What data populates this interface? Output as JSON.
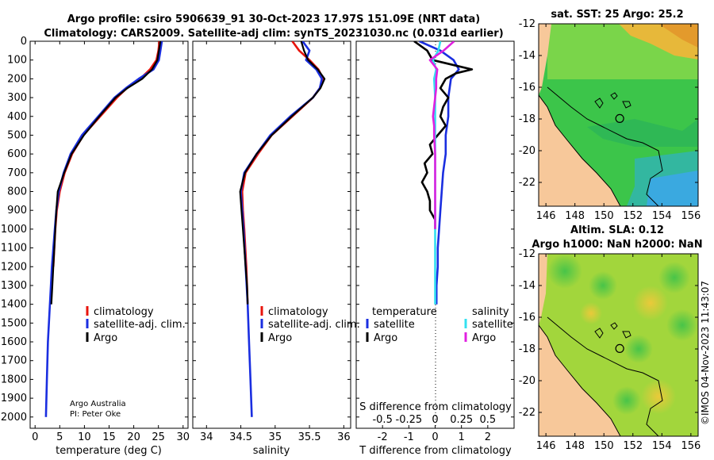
{
  "header": {
    "title_line1": "Argo profile: csiro 5906639_91 30-Oct-2023 17.97S 151.09E (NRT data)",
    "title_line2": "Climatology: CARS2009. Satellite-adj clim: synTS_20231030.nc (0.031d earlier)"
  },
  "credits": {
    "line1": "Argo Australia",
    "line2": "PI: Peter Oke"
  },
  "stamp": "©IMOS 04-Nov-2023 11:43:07",
  "colors": {
    "climatology": "#e8140c",
    "satellite": "#1a2ee0",
    "argo": "#000000",
    "sal_satellite": "#33e0f0",
    "sal_argo": "#e020e0"
  },
  "chart_data": [
    {
      "id": "temperature",
      "type": "line",
      "xlabel": "temperature (deg C)",
      "ylabel": "",
      "xlim": [
        -1,
        31
      ],
      "ylim": [
        2060,
        0
      ],
      "xticks": [
        0,
        5,
        10,
        15,
        20,
        25,
        30
      ],
      "xtick_labels": [
        "0",
        "5",
        "10",
        "15",
        "20",
        "25",
        "30"
      ],
      "yticks": [
        0,
        100,
        200,
        300,
        400,
        500,
        600,
        700,
        800,
        900,
        1000,
        1100,
        1200,
        1300,
        1400,
        1500,
        1600,
        1700,
        1800,
        1900,
        2000
      ],
      "ytick_labels": [
        "0",
        "100",
        "200",
        "300",
        "400",
        "500",
        "600",
        "700",
        "800",
        "900",
        "1000",
        "1100",
        "1200",
        "1300",
        "1400",
        "1500",
        "1600",
        "1700",
        "1800",
        "1900",
        "2000"
      ],
      "legend": [
        "climatology",
        "satellite-adj. clim.",
        "Argo"
      ],
      "series": [
        {
          "name": "climatology",
          "depth": [
            0,
            50,
            100,
            150,
            200,
            250,
            300,
            400,
            500,
            600,
            700,
            800,
            900,
            1000,
            1200
          ],
          "values": [
            25.2,
            25,
            24.6,
            23.3,
            21.3,
            18.6,
            16.6,
            13.2,
            9.8,
            7.5,
            6.0,
            5.0,
            4.4,
            4.1,
            3.7
          ]
        },
        {
          "name": "satellite-adj. clim.",
          "depth": [
            0,
            50,
            100,
            150,
            200,
            250,
            300,
            400,
            500,
            600,
            700,
            800,
            900,
            1000,
            1200,
            1400,
            1600,
            1800,
            2000
          ],
          "values": [
            25.7,
            25.4,
            25.1,
            24.0,
            21.0,
            18.4,
            16.1,
            12.8,
            9.5,
            7.2,
            5.8,
            4.8,
            4.3,
            4.0,
            3.4,
            3.0,
            2.6,
            2.4,
            2.2
          ]
        },
        {
          "name": "Argo",
          "depth": [
            0,
            50,
            100,
            150,
            200,
            250,
            300,
            400,
            500,
            600,
            700,
            800,
            900,
            1000,
            1100,
            1200,
            1300,
            1400
          ],
          "values": [
            25.4,
            25.1,
            24.8,
            23.7,
            21.7,
            18.7,
            16.3,
            13.0,
            9.9,
            7.4,
            5.9,
            4.6,
            4.3,
            4.1,
            3.9,
            3.7,
            3.5,
            3.3
          ]
        }
      ]
    },
    {
      "id": "salinity",
      "type": "line",
      "xlabel": "salinity",
      "xlim": [
        33.8,
        36.1
      ],
      "ylim": [
        2060,
        0
      ],
      "xticks": [
        34,
        34.5,
        35,
        35.5,
        36
      ],
      "xtick_labels": [
        "34",
        "34.5",
        "35",
        "35.5",
        "36"
      ],
      "legend": [
        "climatology",
        "satellite-adj. clim.",
        "Argo"
      ],
      "series": [
        {
          "name": "climatology",
          "depth": [
            0,
            50,
            100,
            150,
            200,
            250,
            300,
            400,
            500,
            600,
            700,
            800,
            900,
            1000,
            1200,
            1400
          ],
          "values": [
            35.25,
            35.35,
            35.5,
            35.63,
            35.7,
            35.65,
            35.55,
            35.25,
            34.95,
            34.75,
            34.57,
            34.52,
            34.53,
            34.55,
            34.58,
            34.6
          ]
        },
        {
          "name": "satellite-adj. clim.",
          "depth": [
            0,
            50,
            100,
            150,
            200,
            250,
            300,
            400,
            500,
            600,
            700,
            800,
            900,
            1000,
            1200,
            1400,
            1600,
            1800,
            2000
          ],
          "values": [
            35.4,
            35.5,
            35.45,
            35.6,
            35.68,
            35.65,
            35.55,
            35.22,
            34.93,
            34.73,
            34.55,
            34.5,
            34.52,
            34.54,
            34.57,
            34.6,
            34.62,
            34.64,
            34.66
          ]
        },
        {
          "name": "Argo",
          "depth": [
            0,
            50,
            100,
            150,
            200,
            250,
            300,
            400,
            500,
            600,
            700,
            800,
            900,
            1000,
            1100,
            1200,
            1300,
            1400
          ],
          "values": [
            35.38,
            35.42,
            35.48,
            35.62,
            35.72,
            35.66,
            35.55,
            35.24,
            34.95,
            34.73,
            34.56,
            34.49,
            34.51,
            34.53,
            34.55,
            34.57,
            34.59,
            34.6
          ]
        }
      ]
    },
    {
      "id": "difference",
      "type": "line",
      "xlabel": "T difference from climatology",
      "xlabel_top": "S difference from climatology",
      "xlim": [
        -3,
        3
      ],
      "ylim": [
        2060,
        0
      ],
      "xticks": [
        -2,
        -1,
        0,
        1,
        2
      ],
      "xtick_labels": [
        "-2",
        "-1",
        "0",
        "1",
        "2"
      ],
      "s_xticks": [
        -0.5,
        -0.25,
        0,
        0.25,
        0.5
      ],
      "s_xtick_labels": [
        "-0.5",
        "-0.25",
        "0",
        "0.25",
        "0.5"
      ],
      "legend_temperature_title": "temperature",
      "legend_salinity_title": "salinity",
      "legend_temperature": [
        "satellite",
        "Argo"
      ],
      "legend_salinity": [
        "satellite",
        "Argo"
      ],
      "series": [
        {
          "name": "T satellite",
          "depth": [
            0,
            50,
            100,
            150,
            200,
            300,
            400,
            500,
            600,
            700,
            800,
            900,
            1000,
            1100,
            1200,
            1300,
            1400
          ],
          "values": [
            -0.6,
            0.2,
            0.7,
            0.9,
            0.6,
            0.5,
            0.5,
            0.4,
            0.4,
            0.3,
            0.25,
            0.2,
            0.15,
            0.1,
            0.1,
            0.05,
            0.05
          ]
        },
        {
          "name": "T Argo",
          "depth": [
            0,
            50,
            100,
            130,
            150,
            170,
            200,
            250,
            300,
            350,
            400,
            450,
            500,
            550,
            600,
            650,
            700,
            750,
            800,
            850,
            900,
            950,
            1000
          ],
          "values": [
            -0.8,
            -0.3,
            -0.1,
            0.8,
            1.4,
            0.8,
            0.4,
            0.2,
            0.5,
            0.3,
            0.2,
            0.4,
            0.1,
            -0.2,
            -0.1,
            -0.4,
            -0.3,
            -0.5,
            -0.3,
            -0.2,
            -0.2,
            0,
            0
          ]
        },
        {
          "name": "S satellite",
          "depth": [
            0,
            50,
            100,
            150,
            200,
            300,
            400,
            500,
            600,
            800,
            1000,
            1200,
            1400
          ],
          "values": [
            0.05,
            0.03,
            -0.02,
            0.01,
            -0.01,
            0,
            0,
            0,
            0,
            0,
            0,
            0,
            0
          ]
        },
        {
          "name": "S Argo",
          "depth": [
            0,
            50,
            100,
            150,
            200,
            250,
            300,
            400,
            450,
            500,
            600,
            700,
            800,
            900,
            1000
          ],
          "values": [
            0.18,
            0.08,
            -0.05,
            0.02,
            0.01,
            0.01,
            0,
            -0.02,
            -0.01,
            -0.01,
            0,
            0,
            0,
            0,
            0
          ]
        }
      ]
    },
    {
      "id": "sst_map",
      "type": "heatmap",
      "title": "sat. SST: 25 Argo: 25.2",
      "xlim": [
        145.5,
        156.5
      ],
      "ylim": [
        -23.5,
        -12
      ],
      "xticks": [
        146,
        148,
        150,
        152,
        154,
        156
      ],
      "xtick_labels": [
        "146",
        "148",
        "150",
        "152",
        "154",
        "156"
      ],
      "yticks": [
        -12,
        -14,
        -16,
        -18,
        -20,
        -22
      ],
      "ytick_labels": [
        "-12",
        "-14",
        "-16",
        "-18",
        "-20",
        "-22"
      ],
      "marker": {
        "lon": 151.09,
        "lat": -17.97
      }
    },
    {
      "id": "sla_map",
      "type": "heatmap",
      "title_line1": "Altim. SLA: 0.12",
      "title_line2": "Argo h1000: NaN h2000: NaN",
      "xlim": [
        145.5,
        156.5
      ],
      "ylim": [
        -23.5,
        -12
      ],
      "xticks": [
        146,
        148,
        150,
        152,
        154,
        156
      ],
      "xtick_labels": [
        "146",
        "148",
        "150",
        "152",
        "154",
        "156"
      ],
      "yticks": [
        -12,
        -14,
        -16,
        -18,
        -20,
        -22
      ],
      "ytick_labels": [
        "-12",
        "-14",
        "-16",
        "-18",
        "-20",
        "-22"
      ],
      "marker": {
        "lon": 151.09,
        "lat": -17.97
      }
    }
  ]
}
